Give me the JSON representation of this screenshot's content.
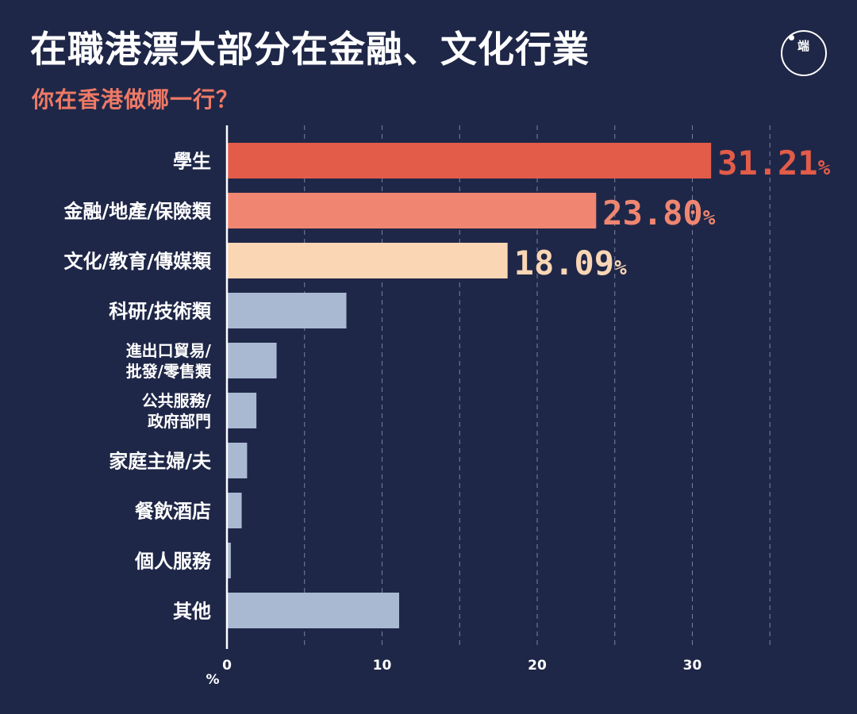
{
  "header": {
    "title": "在職港漂大部分在金融、文化行業",
    "subtitle": "你在香港做哪一行？",
    "logo_text": "端",
    "logo_icon": "initium-logo-icon"
  },
  "colors": {
    "background": "#1f2748",
    "top1": "#e35c49",
    "top2": "#f08671",
    "top3": "#fad6b4",
    "other_bar": "#a9b9d2",
    "value_top1": "#e35c49",
    "value_top2": "#ef8671",
    "value_top3": "#fad6b4",
    "grid": "#9aa0b8"
  },
  "chart_data": {
    "type": "bar",
    "orientation": "horizontal",
    "title": "在職港漂大部分在金融、文化行業",
    "subtitle": "你在香港做哪一行？",
    "xlabel": "%",
    "ylabel": "",
    "xlim": [
      0,
      35
    ],
    "xticks": [
      0,
      10,
      20,
      30
    ],
    "grid": true,
    "categories": [
      [
        "學生"
      ],
      [
        "金融/地產/保險類"
      ],
      [
        "文化/教育/傳媒類"
      ],
      [
        "科研/技術類"
      ],
      [
        "進出口貿易/",
        "批發/零售類"
      ],
      [
        "公共服務/",
        "政府部門"
      ],
      [
        "家庭主婦/夫"
      ],
      [
        "餐飲酒店"
      ],
      [
        "個人服務"
      ],
      [
        "其他"
      ]
    ],
    "values": [
      31.21,
      23.8,
      18.09,
      7.7,
      3.2,
      1.9,
      1.3,
      0.95,
      0.25,
      11.1
    ],
    "labels": [
      "31.21",
      "23.80",
      "18.09",
      "",
      "",
      "",
      "",
      "",
      "",
      ""
    ],
    "label_unit": "%"
  }
}
